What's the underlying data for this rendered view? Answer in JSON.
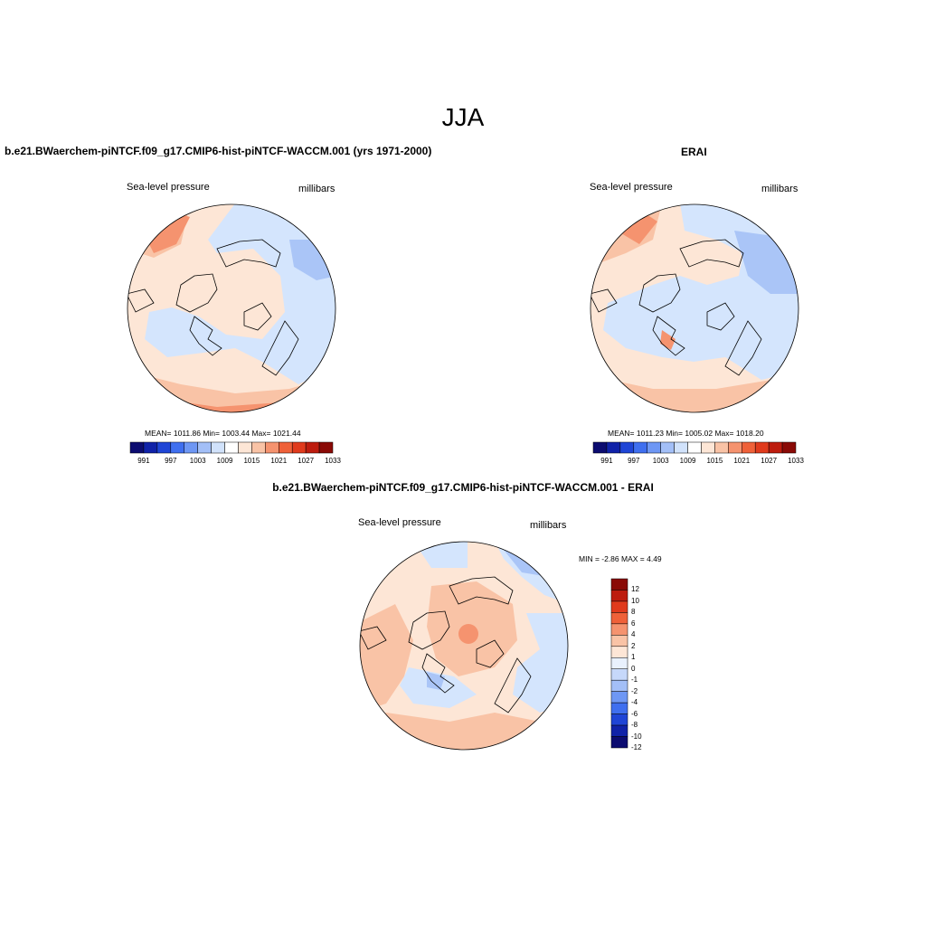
{
  "figure": {
    "title": "JJA"
  },
  "panels": [
    {
      "id": "model",
      "title": "b.e21.BWaerchem-piNTCF.f09_g17.CMIP6-hist-piNTCF-WACCM.001 (yrs 1971-2000)",
      "left_label": "Sea-level pressure",
      "right_label": "millibars",
      "stats": "MEAN= 1011.86  Min= 1003.44  Max= 1021.44",
      "colorbar_ticks": [
        "991",
        "997",
        "1003",
        "1009",
        "1015",
        "1021",
        "1027",
        "1033"
      ]
    },
    {
      "id": "erai",
      "title": "ERAI",
      "left_label": "Sea-level pressure",
      "right_label": "millibars",
      "stats": "MEAN= 1011.23  Min= 1005.02  Max= 1018.20",
      "colorbar_ticks": [
        "991",
        "997",
        "1003",
        "1009",
        "1015",
        "1021",
        "1027",
        "1033"
      ]
    },
    {
      "id": "diff",
      "title": "b.e21.BWaerchem-piNTCF.f09_g17.CMIP6-hist-piNTCF-WACCM.001 - ERAI",
      "left_label": "Sea-level pressure",
      "right_label": "millibars",
      "stats": "MIN =  -2.86 MAX =   4.49",
      "colorbar_ticks": [
        "12",
        "10",
        "8",
        "6",
        "4",
        "2",
        "1",
        "0",
        "-1",
        "-2",
        "-4",
        "-6",
        "-8",
        "-10",
        "-12"
      ]
    }
  ],
  "colors": {
    "abs_scale": [
      "#0c0c70",
      "#1022a8",
      "#1f45d6",
      "#3f6fef",
      "#6e97f4",
      "#a3bff7",
      "#d1e2fb",
      "#ffffff",
      "#fde6d6",
      "#f9c3a6",
      "#f5936f",
      "#ef6139",
      "#e03a1c",
      "#bd1c0e",
      "#8a0a06"
    ],
    "diff_scale": [
      "#8a0a06",
      "#bd1c0e",
      "#e03a1c",
      "#ef6139",
      "#f5936f",
      "#f9c3a6",
      "#fde6d6",
      "#e9f1fd",
      "#c6d8fa",
      "#a3bff7",
      "#6e97f4",
      "#3f6fef",
      "#1f45d6",
      "#1022a8",
      "#0c0c70"
    ],
    "light_blue": "#d4e5fd",
    "light_orange": "#fde6d6",
    "mid_orange": "#f9c3a6",
    "mid_blue": "#aac5f7",
    "coast": "#000000"
  }
}
